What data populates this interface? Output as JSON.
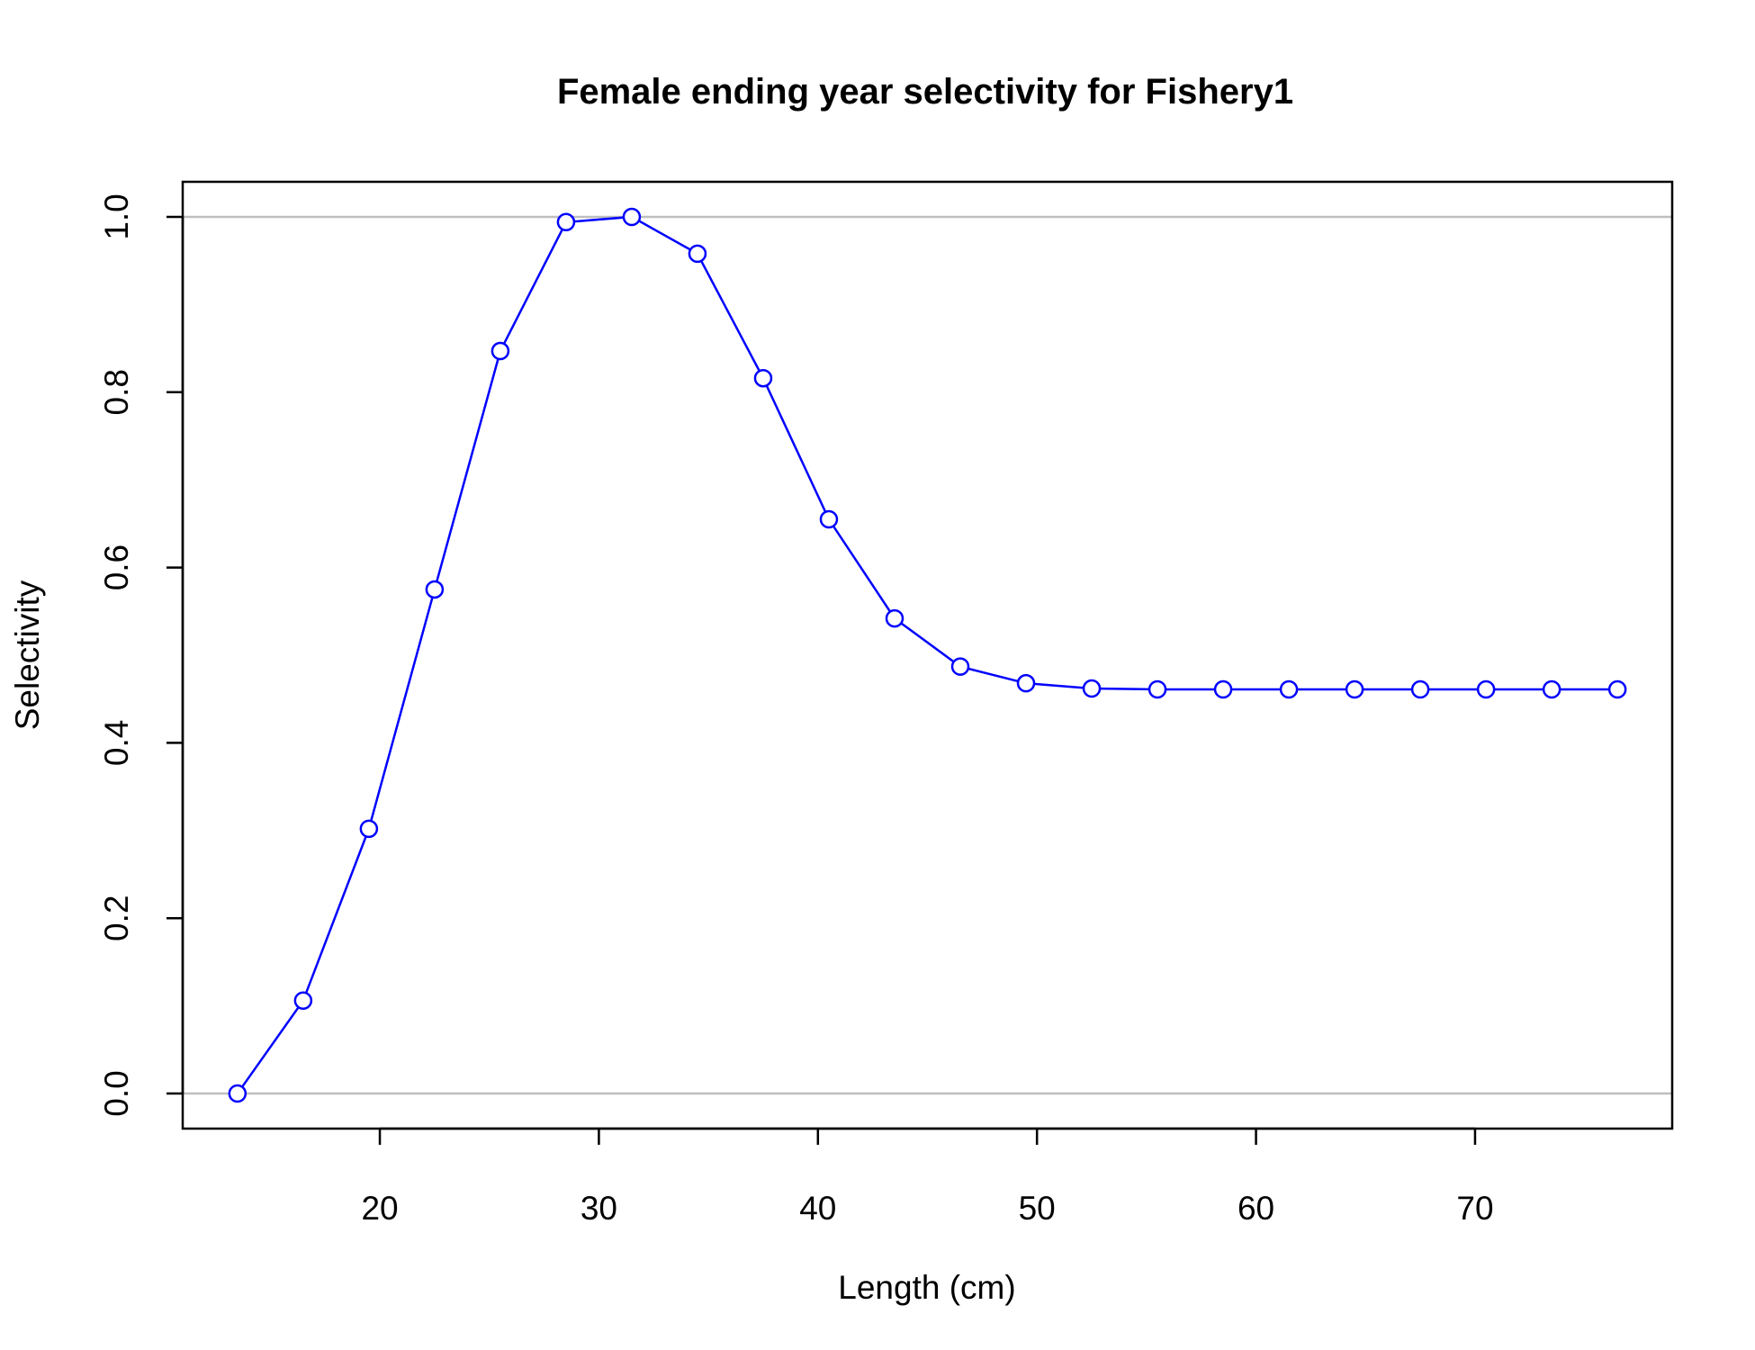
{
  "chart_data": {
    "type": "line",
    "title": "Female ending year selectivity for Fishery1",
    "xlabel": "Length (cm)",
    "ylabel": "Selectivity",
    "xlim": [
      11,
      79
    ],
    "ylim": [
      -0.04,
      1.04
    ],
    "x_ticks": [
      20,
      30,
      40,
      50,
      60,
      70
    ],
    "x_tick_labels": [
      "20",
      "30",
      "40",
      "50",
      "60",
      "70"
    ],
    "y_ticks": [
      0.0,
      0.2,
      0.4,
      0.6,
      0.8,
      1.0
    ],
    "y_tick_labels": [
      "0.0",
      "0.2",
      "0.4",
      "0.6",
      "0.8",
      "1.0"
    ],
    "reference_lines": [
      0,
      1
    ],
    "reference_line_color": "#bebebe",
    "series_color": "#0000ff",
    "marker": "open-circle",
    "series": [
      {
        "x": [
          13.5,
          16.5,
          19.5,
          22.5,
          25.5,
          28.5,
          31.5,
          34.5,
          37.5,
          40.5,
          43.5,
          46.5,
          49.5,
          52.5,
          55.5,
          58.5,
          61.5,
          64.5,
          67.5,
          70.5,
          73.5,
          76.5
        ],
        "values": [
          0.0,
          0.106,
          0.302,
          0.575,
          0.847,
          0.994,
          1.0,
          0.958,
          0.816,
          0.655,
          0.542,
          0.487,
          0.468,
          0.462,
          0.461,
          0.461,
          0.461,
          0.461,
          0.461,
          0.461,
          0.461,
          0.461
        ]
      }
    ]
  }
}
